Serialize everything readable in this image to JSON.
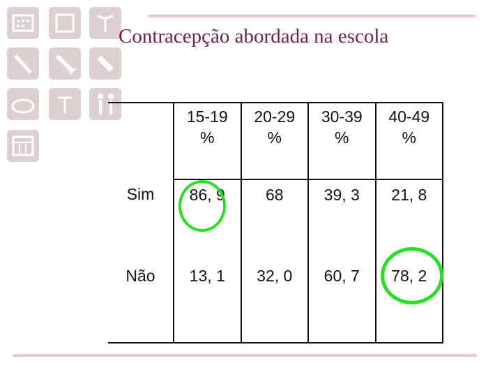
{
  "title": "Contracepção abordada na escola",
  "colors": {
    "title": "#6e1f4d",
    "highlight": "#27e024",
    "accent_line": "#e7c8d0",
    "icon_tile": "#dcd0d3"
  },
  "icons": [
    "calendar-pill-icon",
    "blank-square-icon",
    "iud-icon",
    "condom-icon",
    "syringe-icon",
    "tube-icon",
    "diaphragm-icon",
    "iud-small-icon",
    "body-figures-icon",
    "calendar-icon"
  ],
  "table": {
    "headers": [
      {
        "range": "15-19",
        "unit": "%"
      },
      {
        "range": "20-29",
        "unit": "%"
      },
      {
        "range": "30-39",
        "unit": "%"
      },
      {
        "range": "40-49",
        "unit": "%"
      }
    ],
    "rows": [
      {
        "label": "Sim",
        "values": [
          "86, 9",
          "68",
          "39, 3",
          "21, 8"
        ]
      },
      {
        "label": "Não",
        "values": [
          "13, 1",
          "32, 0",
          "60, 7",
          "78, 2"
        ]
      }
    ]
  },
  "highlighted_cells": [
    "Sim / 15-19: 86, 9",
    "Não / 40-49: 78, 2"
  ]
}
